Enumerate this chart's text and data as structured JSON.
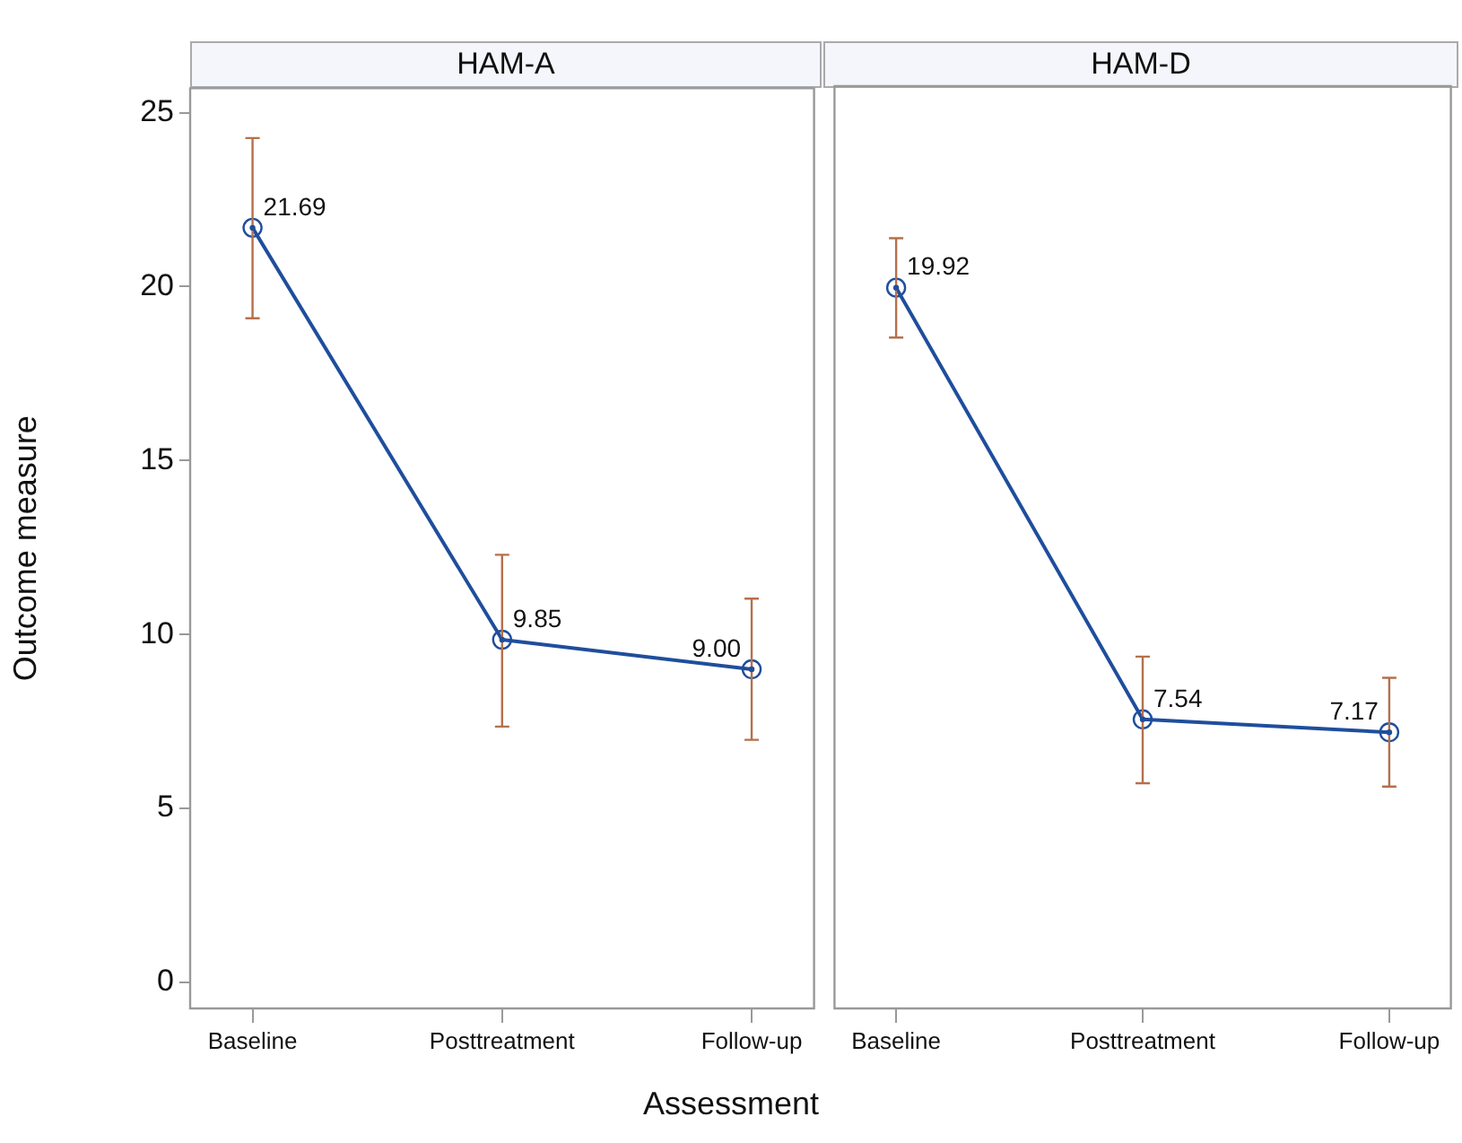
{
  "chart_data": [
    {
      "type": "line",
      "title": "HAM-A",
      "ylabel": "Outcome measure",
      "xlabel": "Assessment",
      "categories": [
        "Baseline",
        "Posttreatment",
        "Follow-up"
      ],
      "series": [
        {
          "color": "#1f4e9c",
          "values": [
            21.69,
            9.85,
            9.0
          ],
          "value_labels": [
            "21.69",
            "9.85",
            "9.00"
          ],
          "errors": [
            [
              19.09,
              24.27
            ],
            [
              7.35,
              12.29
            ],
            [
              6.97,
              11.03
            ]
          ]
        }
      ],
      "ylim": [
        -0.75,
        25.7
      ],
      "yticks": [
        0,
        5,
        10,
        15,
        20,
        25
      ],
      "marker": "circle",
      "grid": false,
      "legend": false
    },
    {
      "type": "line",
      "title": "HAM-D",
      "categories": [
        "Baseline",
        "Posttreatment",
        "Follow-up"
      ],
      "series": [
        {
          "color": "#1f4e9c",
          "values": [
            19.92,
            7.54,
            7.17
          ],
          "value_labels": [
            "19.92",
            "7.54",
            "7.17"
          ],
          "errors": [
            [
              18.49,
              21.34
            ],
            [
              5.71,
              9.34
            ],
            [
              5.61,
              8.73
            ]
          ]
        }
      ],
      "ylim": [
        -0.75,
        25.7
      ],
      "yticks": [
        0,
        5,
        10,
        15,
        20,
        25
      ],
      "marker": "circle",
      "grid": false,
      "legend": false,
      "tick_labels": "x"
    }
  ]
}
